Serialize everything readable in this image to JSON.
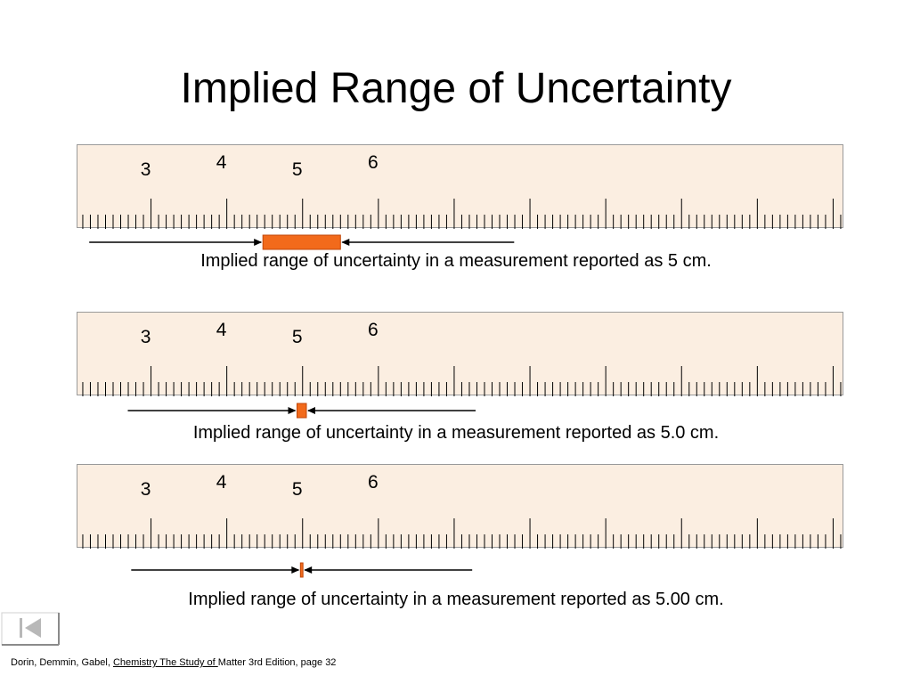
{
  "title": "Implied Range of Uncertainty",
  "ruler_labels": [
    "3",
    "4",
    "5",
    "6"
  ],
  "measurements": [
    {
      "caption": "Implied range of uncertainty in a measurement reported as 5 cm.",
      "reported": 5,
      "range": [
        4.5,
        5.5
      ]
    },
    {
      "caption": "Implied range of uncertainty in a measurement reported as 5.0 cm.",
      "reported": 5.0,
      "range": [
        4.95,
        5.05
      ]
    },
    {
      "caption": "Implied range of uncertainty in a measurement reported as 5.00 cm.",
      "reported": 5.0,
      "range": [
        4.995,
        5.005
      ]
    }
  ],
  "colors": {
    "range_fill": "#f26a1b",
    "range_stroke": "#c0470a",
    "ruler_bg": "#fbeee1"
  },
  "credit": {
    "authors": "Dorin, Demmin, Gabel, ",
    "book": "Chemistry The Study of ",
    "rest": "Matter 3rd Edition, page 32"
  },
  "nav": {
    "icon": "first-slide-icon"
  }
}
